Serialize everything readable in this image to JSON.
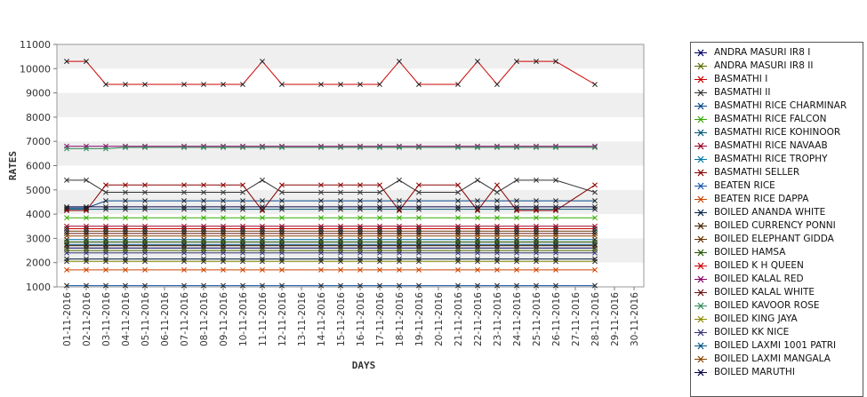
{
  "chart_data": {
    "type": "line",
    "title": "",
    "xlabel": "DAYS",
    "ylabel": "RATES",
    "ylim": [
      1000,
      11000
    ],
    "yticks": [
      "1000",
      "2000",
      "3000",
      "4000",
      "5000",
      "6000",
      "7000",
      "8000",
      "9000",
      "10000",
      "11000"
    ],
    "x": [
      "01-11-2016",
      "02-11-2016",
      "03-11-2016",
      "04-11-2016",
      "05-11-2016",
      "06-11-2016",
      "07-11-2016",
      "08-11-2016",
      "09-11-2016",
      "10-11-2016",
      "11-11-2016",
      "12-11-2016",
      "13-11-2016",
      "14-11-2016",
      "15-11-2016",
      "16-11-2016",
      "17-11-2016",
      "18-11-2016",
      "19-11-2016",
      "20-11-2016",
      "21-11-2016",
      "22-11-2016",
      "23-11-2016",
      "24-11-2016",
      "25-11-2016",
      "26-11-2016",
      "27-11-2016",
      "28-11-2016",
      "29-11-2016",
      "30-11-2016"
    ],
    "grid": "alternating horizontal bands",
    "legend_position": "right",
    "series": [
      {
        "name": "ANDRA MASURI IR8 I",
        "color": "#000060",
        "values": [
          2600,
          2600,
          2600,
          2600,
          2600,
          null,
          2600,
          2600,
          2600,
          2600,
          2600,
          2600,
          null,
          2600,
          2600,
          2600,
          2600,
          2600,
          2600,
          null,
          2600,
          2600,
          2600,
          2600,
          2600,
          2600,
          null,
          2600,
          null,
          null
        ]
      },
      {
        "name": "ANDRA MASURI IR8 II",
        "color": "#556b00",
        "values": [
          2500,
          2500,
          2500,
          2500,
          2500,
          null,
          2500,
          2500,
          2500,
          2500,
          2500,
          2500,
          null,
          2500,
          2500,
          2500,
          2500,
          2500,
          2500,
          null,
          2500,
          2500,
          2500,
          2500,
          2500,
          2500,
          null,
          2500,
          null,
          null
        ]
      },
      {
        "name": "BASMATHI I",
        "color": "#cc0000",
        "values": [
          10300,
          10300,
          9350,
          9350,
          9350,
          null,
          9350,
          9350,
          9350,
          9350,
          10300,
          9350,
          null,
          9350,
          9350,
          9350,
          9350,
          10300,
          9350,
          null,
          9350,
          10300,
          9350,
          10300,
          10300,
          10300,
          null,
          9350,
          null,
          null
        ]
      },
      {
        "name": "BASMATHI II",
        "color": "#333333",
        "values": [
          5400,
          5400,
          4900,
          4900,
          4900,
          null,
          4900,
          4900,
          4900,
          4900,
          5400,
          4900,
          null,
          4900,
          4900,
          4900,
          4900,
          5400,
          4900,
          null,
          4900,
          5400,
          4900,
          5400,
          5400,
          5400,
          null,
          4900,
          null,
          null
        ]
      },
      {
        "name": "BASMATHI RICE CHARMINAR",
        "color": "#004488",
        "values": [
          4250,
          4250,
          4550,
          4550,
          4550,
          null,
          4550,
          4550,
          4550,
          4550,
          4550,
          4550,
          null,
          4550,
          4550,
          4550,
          4550,
          4550,
          4550,
          null,
          4550,
          4550,
          4550,
          4550,
          4550,
          4550,
          null,
          4550,
          null,
          null
        ]
      },
      {
        "name": "BASMATHI RICE FALCON",
        "color": "#33aa00",
        "values": [
          3850,
          3850,
          3850,
          3850,
          3850,
          null,
          3850,
          3850,
          3850,
          3850,
          3850,
          3850,
          null,
          3850,
          3850,
          3850,
          3850,
          3850,
          3850,
          null,
          3850,
          3850,
          3850,
          3850,
          3850,
          3850,
          null,
          3850,
          null,
          null
        ]
      },
      {
        "name": "BASMATHI RICE KOHINOOR",
        "color": "#005577",
        "values": [
          4200,
          4200,
          4200,
          4200,
          4200,
          null,
          4200,
          4200,
          4200,
          4200,
          4200,
          4200,
          null,
          4200,
          4200,
          4200,
          4200,
          4200,
          4200,
          null,
          4200,
          4200,
          4200,
          4200,
          4200,
          4200,
          null,
          4200,
          null,
          null
        ]
      },
      {
        "name": "BASMATHI RICE NAVAAB",
        "color": "#990022",
        "values": [
          3500,
          3500,
          3500,
          3500,
          3500,
          null,
          3500,
          3500,
          3500,
          3500,
          3500,
          3500,
          null,
          3500,
          3500,
          3500,
          3500,
          3500,
          3500,
          null,
          3500,
          3500,
          3500,
          3500,
          3500,
          3500,
          null,
          3500,
          null,
          null
        ]
      },
      {
        "name": "BASMATHI RICE TROPHY",
        "color": "#0077aa",
        "values": [
          2950,
          2950,
          2950,
          2950,
          2950,
          null,
          2950,
          2950,
          2950,
          2950,
          2950,
          2950,
          null,
          2950,
          2950,
          2950,
          2950,
          2950,
          2950,
          null,
          2950,
          2950,
          2950,
          2950,
          2950,
          2950,
          null,
          2950,
          null,
          null
        ]
      },
      {
        "name": "BASMATHI SELLER",
        "color": "#880000",
        "values": [
          4150,
          4150,
          5200,
          5200,
          5200,
          null,
          5200,
          5200,
          5200,
          5200,
          4150,
          5200,
          null,
          5200,
          5200,
          5200,
          5200,
          4150,
          5200,
          null,
          5200,
          4150,
          5200,
          4150,
          4150,
          4150,
          null,
          5200,
          null,
          null
        ]
      },
      {
        "name": "BEATEN RICE",
        "color": "#1155aa",
        "values": [
          1050,
          1050,
          1050,
          1050,
          1050,
          null,
          1050,
          1050,
          1050,
          1050,
          1050,
          1050,
          null,
          1050,
          1050,
          1050,
          1050,
          1050,
          1050,
          null,
          1050,
          1050,
          1050,
          1050,
          1050,
          1050,
          null,
          1050,
          null,
          null
        ]
      },
      {
        "name": "BEATEN RICE DAPPA",
        "color": "#cc4400",
        "values": [
          1700,
          1700,
          1700,
          1700,
          1700,
          null,
          1700,
          1700,
          1700,
          1700,
          1700,
          1700,
          null,
          1700,
          1700,
          1700,
          1700,
          1700,
          1700,
          null,
          1700,
          1700,
          1700,
          1700,
          1700,
          1700,
          null,
          1700,
          null,
          null
        ]
      },
      {
        "name": "BOILED ANANDA WHITE",
        "color": "#002244",
        "values": [
          2150,
          2150,
          2150,
          2150,
          2150,
          null,
          2150,
          2150,
          2150,
          2150,
          2150,
          2150,
          null,
          2150,
          2150,
          2150,
          2150,
          2150,
          2150,
          null,
          2150,
          2150,
          2150,
          2150,
          2150,
          2150,
          null,
          2150,
          null,
          null
        ]
      },
      {
        "name": "BOILED CURRENCY PONNI",
        "color": "#442200",
        "values": [
          2700,
          2700,
          2700,
          2700,
          2700,
          null,
          2700,
          2700,
          2700,
          2700,
          2700,
          2700,
          null,
          2700,
          2700,
          2700,
          2700,
          2700,
          2700,
          null,
          2700,
          2700,
          2700,
          2700,
          2700,
          2700,
          null,
          2700,
          null,
          null
        ]
      },
      {
        "name": "BOILED ELEPHANT GIDDA",
        "color": "#663300",
        "values": [
          3300,
          3300,
          3300,
          3300,
          3300,
          null,
          3300,
          3300,
          3300,
          3300,
          3300,
          3300,
          null,
          3300,
          3300,
          3300,
          3300,
          3300,
          3300,
          null,
          3300,
          3300,
          3300,
          3300,
          3300,
          3300,
          null,
          3300,
          null,
          null
        ]
      },
      {
        "name": "BOILED HAMSA",
        "color": "#225500",
        "values": [
          2850,
          2850,
          2850,
          2850,
          2850,
          null,
          2850,
          2850,
          2850,
          2850,
          2850,
          2850,
          null,
          2850,
          2850,
          2850,
          2850,
          2850,
          2850,
          null,
          2850,
          2850,
          2850,
          2850,
          2850,
          2850,
          null,
          2850,
          null,
          null
        ]
      },
      {
        "name": "BOILED K H QUEEN",
        "color": "#cc0000",
        "values": [
          3400,
          3400,
          3400,
          3400,
          3400,
          null,
          3400,
          3400,
          3400,
          3400,
          3400,
          3400,
          null,
          3400,
          3400,
          3400,
          3400,
          3400,
          3400,
          null,
          3400,
          3400,
          3400,
          3400,
          3400,
          3400,
          null,
          3400,
          null,
          null
        ]
      },
      {
        "name": "BOILED KALAL RED",
        "color": "#880066",
        "values": [
          6800,
          6800,
          6800,
          6800,
          6800,
          null,
          6800,
          6800,
          6800,
          6800,
          6800,
          6800,
          null,
          6800,
          6800,
          6800,
          6800,
          6800,
          6800,
          null,
          6800,
          6800,
          6800,
          6800,
          6800,
          6800,
          null,
          6800,
          null,
          null
        ]
      },
      {
        "name": "BOILED KALAL WHITE",
        "color": "#661111",
        "values": [
          3200,
          3200,
          3200,
          3200,
          3200,
          null,
          3200,
          3200,
          3200,
          3200,
          3200,
          3200,
          null,
          3200,
          3200,
          3200,
          3200,
          3200,
          3200,
          null,
          3200,
          3200,
          3200,
          3200,
          3200,
          3200,
          null,
          3200,
          null,
          null
        ]
      },
      {
        "name": "BOILED KAVOOR ROSE",
        "color": "#2e8b57",
        "values": [
          6700,
          6700,
          6700,
          6750,
          6750,
          null,
          6750,
          6750,
          6750,
          6750,
          6750,
          6750,
          null,
          6750,
          6750,
          6750,
          6750,
          6750,
          6750,
          null,
          6750,
          6750,
          6750,
          6750,
          6750,
          6750,
          null,
          6750,
          null,
          null
        ]
      },
      {
        "name": "BOILED KING JAYA",
        "color": "#8a8a00",
        "values": [
          2050,
          2050,
          2050,
          2050,
          2050,
          null,
          2050,
          2050,
          2050,
          2050,
          2050,
          2050,
          null,
          2050,
          2050,
          2050,
          2050,
          2050,
          2050,
          null,
          2050,
          2050,
          2050,
          2050,
          2050,
          2050,
          null,
          2050,
          null,
          null
        ]
      },
      {
        "name": "BOILED KK NICE",
        "color": "#333377",
        "values": [
          2400,
          2400,
          2400,
          2400,
          2400,
          null,
          2400,
          2400,
          2400,
          2400,
          2400,
          2400,
          null,
          2400,
          2400,
          2400,
          2400,
          2400,
          2400,
          null,
          2400,
          2400,
          2400,
          2400,
          2400,
          2400,
          null,
          2400,
          null,
          null
        ]
      },
      {
        "name": "BOILED LAXMI 1001 PATRI",
        "color": "#005588",
        "values": [
          2750,
          2750,
          2750,
          2750,
          2750,
          null,
          2750,
          2750,
          2750,
          2750,
          2750,
          2750,
          null,
          2750,
          2750,
          2750,
          2750,
          2750,
          2750,
          null,
          2750,
          2750,
          2750,
          2750,
          2750,
          2750,
          null,
          2750,
          null,
          null
        ]
      },
      {
        "name": "BOILED LAXMI MANGALA",
        "color": "#884400",
        "values": [
          3100,
          3100,
          3100,
          3100,
          3100,
          null,
          3100,
          3100,
          3100,
          3100,
          3100,
          3100,
          null,
          3100,
          3100,
          3100,
          3100,
          3100,
          3100,
          null,
          3100,
          3100,
          3100,
          3100,
          3100,
          3100,
          null,
          3100,
          null,
          null
        ]
      },
      {
        "name": "BOILED MARUTHI",
        "color": "#000044",
        "values": [
          4300,
          4300,
          4300,
          4300,
          4300,
          null,
          4300,
          4300,
          4300,
          4300,
          4300,
          4300,
          null,
          4300,
          4300,
          4300,
          4300,
          4300,
          4300,
          null,
          4300,
          4300,
          4300,
          4300,
          4300,
          4300,
          null,
          4300,
          null,
          null
        ]
      }
    ]
  }
}
